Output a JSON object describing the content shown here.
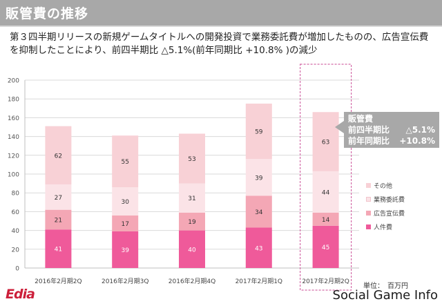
{
  "header": {
    "title": "販管費の推移"
  },
  "summary": "第３四半期リリースの新規ゲームタイトルへの開発投資で業務委託費が増加したものの、広告宣伝費を抑制したことにより、前四半期比 △5.1%(前年同期比 +10.8% )の減少",
  "callout": {
    "title": "販管費",
    "qoq_label": "前四半期比",
    "qoq_value": "△5.1%",
    "yoy_label": "前年同期比",
    "yoy_value": "+10.8%"
  },
  "unit_label": "単位：　百万円",
  "logo": "Edia",
  "watermark": "Social Game Info",
  "colors": {
    "personnel": "#ef5a9a",
    "advertising": "#f4a7b5",
    "outsourcing": "#fbe3e7",
    "other": "#f8d1d6",
    "highlight_border": "#d36aa7",
    "callout_bg": "#a8a8a8"
  },
  "chart_data": {
    "type": "bar",
    "stacked": true,
    "categories": [
      "2016年2月期2Q",
      "2016年2月期3Q",
      "2016年2月期4Q",
      "2017年2月期1Q",
      "2017年2月期2Q"
    ],
    "series": [
      {
        "name": "人件費",
        "values": [
          41,
          39,
          40,
          43,
          45
        ]
      },
      {
        "name": "広告宣伝費",
        "values": [
          21,
          17,
          19,
          34,
          14
        ]
      },
      {
        "name": "業務委託費",
        "values": [
          27,
          30,
          31,
          39,
          44
        ]
      },
      {
        "name": "その他",
        "values": [
          62,
          55,
          53,
          59,
          63
        ]
      }
    ],
    "y_ticks": [
      "0",
      "20",
      "40",
      "60",
      "80",
      "100",
      "120",
      "140",
      "160",
      "180",
      "200"
    ],
    "ylim": [
      0,
      200
    ],
    "grid": true,
    "legend_position": "right",
    "highlighted_category": "2017年2月期2Q"
  }
}
